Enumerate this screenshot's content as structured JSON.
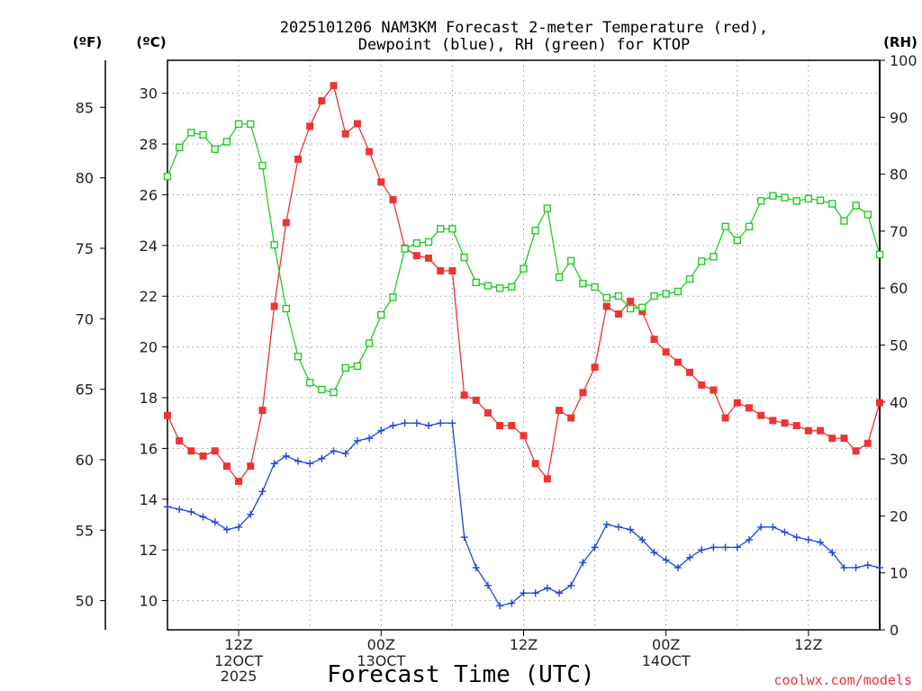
{
  "colors": {
    "temp": "#ee3333",
    "dewpoint": "#2244dd",
    "rh": "#22cc22",
    "credit": "#e8323c"
  },
  "chart_data": {
    "type": "line",
    "title_lines": [
      "2025101206 NAM3KM Forecast 2-meter Temperature (red),",
      "Dewpoint (blue), RH (green) for KTOP"
    ],
    "xlabel": "Forecast Time (UTC)",
    "credit": "coolwx.com/models",
    "left_f_unit": "(ºF)",
    "left_c_unit": "(ºC)",
    "right_unit": "(RH)",
    "f_ticks": [
      50,
      55,
      60,
      65,
      70,
      75,
      80,
      85
    ],
    "c_ticks": [
      10,
      12,
      14,
      16,
      18,
      20,
      22,
      24,
      26,
      28,
      30
    ],
    "rh_ticks": [
      0,
      10,
      20,
      30,
      40,
      50,
      60,
      70,
      80,
      90,
      100
    ],
    "c_range": [
      8.85,
      31.3
    ],
    "rh_range": [
      0,
      100
    ],
    "x_range": [
      6,
      66
    ],
    "x_ticks": [
      {
        "h": 12,
        "label": "12Z",
        "sub": [
          "12OCT",
          "2025"
        ]
      },
      {
        "h": 24,
        "label": "00Z",
        "sub": [
          "13OCT"
        ]
      },
      {
        "h": 36,
        "label": "12Z",
        "sub": []
      },
      {
        "h": 48,
        "label": "00Z",
        "sub": [
          "14OCT"
        ]
      },
      {
        "h": 60,
        "label": "12Z",
        "sub": []
      }
    ],
    "series": [
      {
        "name": "Temperature (red)",
        "units": "C",
        "marker": "filled-square",
        "x": [
          6,
          7,
          8,
          9,
          10,
          11,
          12,
          13,
          14,
          15,
          16,
          17,
          18,
          19,
          20,
          21,
          22,
          23,
          24,
          25,
          26,
          27,
          28,
          29,
          30,
          31,
          32,
          33,
          34,
          35,
          36,
          37,
          38,
          39,
          40,
          41,
          42,
          43,
          44,
          45,
          46,
          47,
          48,
          49,
          50,
          51,
          52,
          53,
          54,
          55,
          56,
          57,
          58,
          59,
          60,
          61,
          62,
          63,
          64,
          65,
          66
        ],
        "values": [
          17.3,
          16.3,
          15.9,
          15.7,
          15.9,
          15.3,
          14.7,
          15.3,
          17.5,
          21.6,
          24.9,
          27.4,
          28.7,
          29.7,
          30.3,
          28.4,
          28.8,
          27.7,
          26.5,
          25.8,
          23.9,
          23.6,
          23.5,
          23.0,
          23.0,
          18.1,
          17.9,
          17.4,
          16.9,
          16.9,
          16.5,
          15.4,
          14.8,
          17.5,
          17.2,
          18.2,
          19.2,
          21.6,
          21.3,
          21.8,
          21.4,
          20.3,
          19.8,
          19.4,
          19.0,
          18.5,
          18.3,
          17.2,
          17.8,
          17.6,
          17.3,
          17.1,
          17.0,
          16.9,
          16.7,
          16.7,
          16.4,
          16.4,
          15.9,
          16.2,
          17.8
        ]
      },
      {
        "name": "Dewpoint (blue)",
        "units": "C",
        "marker": "plus",
        "x": [
          6,
          7,
          8,
          9,
          10,
          11,
          12,
          13,
          14,
          15,
          16,
          17,
          18,
          19,
          20,
          21,
          22,
          23,
          24,
          25,
          26,
          27,
          28,
          29,
          30,
          31,
          32,
          33,
          34,
          35,
          36,
          37,
          38,
          39,
          40,
          41,
          42,
          43,
          44,
          45,
          46,
          47,
          48,
          49,
          50,
          51,
          52,
          53,
          54,
          55,
          56,
          57,
          58,
          59,
          60,
          61,
          62,
          63,
          64,
          65,
          66
        ],
        "values": [
          13.7,
          13.6,
          13.5,
          13.3,
          13.1,
          12.8,
          12.9,
          13.4,
          14.3,
          15.4,
          15.7,
          15.5,
          15.4,
          15.6,
          15.9,
          15.8,
          16.3,
          16.4,
          16.7,
          16.9,
          17.0,
          17.0,
          16.9,
          17.0,
          17.0,
          12.5,
          11.3,
          10.6,
          9.8,
          9.9,
          10.3,
          10.3,
          10.5,
          10.3,
          10.6,
          11.5,
          12.1,
          13.0,
          12.9,
          12.8,
          12.4,
          11.9,
          11.6,
          11.3,
          11.7,
          12.0,
          12.1,
          12.1,
          12.1,
          12.4,
          12.9,
          12.9,
          12.7,
          12.5,
          12.4,
          12.3,
          11.9,
          11.3,
          11.3,
          11.4,
          11.3
        ]
      },
      {
        "name": "RH (green)",
        "units": "%",
        "marker": "open-square",
        "x": [
          6,
          7,
          8,
          9,
          10,
          11,
          12,
          13,
          14,
          15,
          16,
          17,
          18,
          19,
          20,
          21,
          22,
          23,
          24,
          25,
          26,
          27,
          28,
          29,
          30,
          31,
          32,
          33,
          34,
          35,
          36,
          37,
          38,
          39,
          40,
          41,
          42,
          43,
          44,
          45,
          46,
          47,
          48,
          49,
          50,
          51,
          52,
          53,
          54,
          55,
          56,
          57,
          58,
          59,
          60,
          61,
          62,
          63,
          64,
          65,
          66
        ],
        "values": [
          79.6,
          84.7,
          87.3,
          86.9,
          84.4,
          85.7,
          88.8,
          88.8,
          81.5,
          67.6,
          56.4,
          48.0,
          43.4,
          42.2,
          41.7,
          46.0,
          46.3,
          50.3,
          55.3,
          58.4,
          66.9,
          67.9,
          68.1,
          70.4,
          70.4,
          65.4,
          61.0,
          60.4,
          60.0,
          60.2,
          63.4,
          70.1,
          74.0,
          61.9,
          64.8,
          60.8,
          60.2,
          58.3,
          58.6,
          56.4,
          56.6,
          58.6,
          59.0,
          59.4,
          61.6,
          64.7,
          65.5,
          70.8,
          68.4,
          70.8,
          75.3,
          76.2,
          75.9,
          75.3,
          75.7,
          75.4,
          74.8,
          71.8,
          74.5,
          72.9,
          65.9
        ]
      }
    ]
  }
}
